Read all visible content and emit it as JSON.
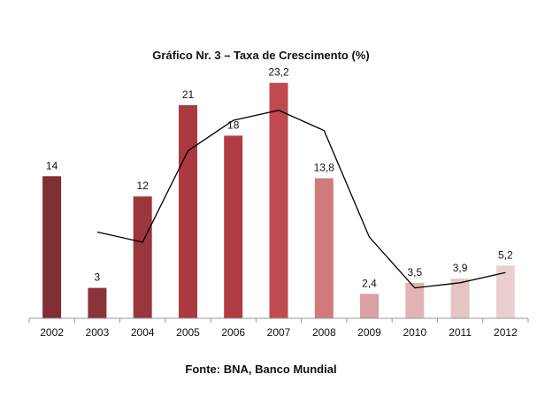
{
  "chart_data": {
    "type": "bar",
    "title": "Gráfico Nr. 3 – Taxa de Crescimento (%)",
    "source": "Fonte: BNA, Banco Mundial",
    "categories": [
      "2002",
      "2003",
      "2004",
      "2005",
      "2006",
      "2007",
      "2008",
      "2009",
      "2010",
      "2011",
      "2012"
    ],
    "values": [
      14,
      3,
      12,
      21,
      18,
      23.2,
      13.8,
      2.4,
      3.5,
      3.9,
      5.2
    ],
    "data_labels": [
      "14",
      "3",
      "12",
      "21",
      "18",
      "23,2",
      "13,8",
      "2,4",
      "3,5",
      "3,9",
      "5,2"
    ],
    "line_series": {
      "categories": [
        "2003",
        "2004",
        "2005",
        "2006",
        "2007",
        "2008",
        "2009",
        "2010",
        "2011",
        "2012"
      ],
      "values": [
        8.5,
        7.5,
        16.5,
        19.5,
        20.5,
        18.5,
        8,
        3,
        3.5,
        4.5
      ]
    },
    "bar_colors": [
      "#7f2f35",
      "#8c3339",
      "#9a363c",
      "#aa3a40",
      "#b03d43",
      "#c04a4f",
      "#d07a7d",
      "#daa0a3",
      "#e1b3b5",
      "#e6c3c5",
      "#ebcfd0"
    ],
    "line_color": "#000000",
    "ylim": [
      0,
      25
    ],
    "xlabel": "",
    "ylabel": "",
    "grid": false,
    "legend": "none"
  }
}
